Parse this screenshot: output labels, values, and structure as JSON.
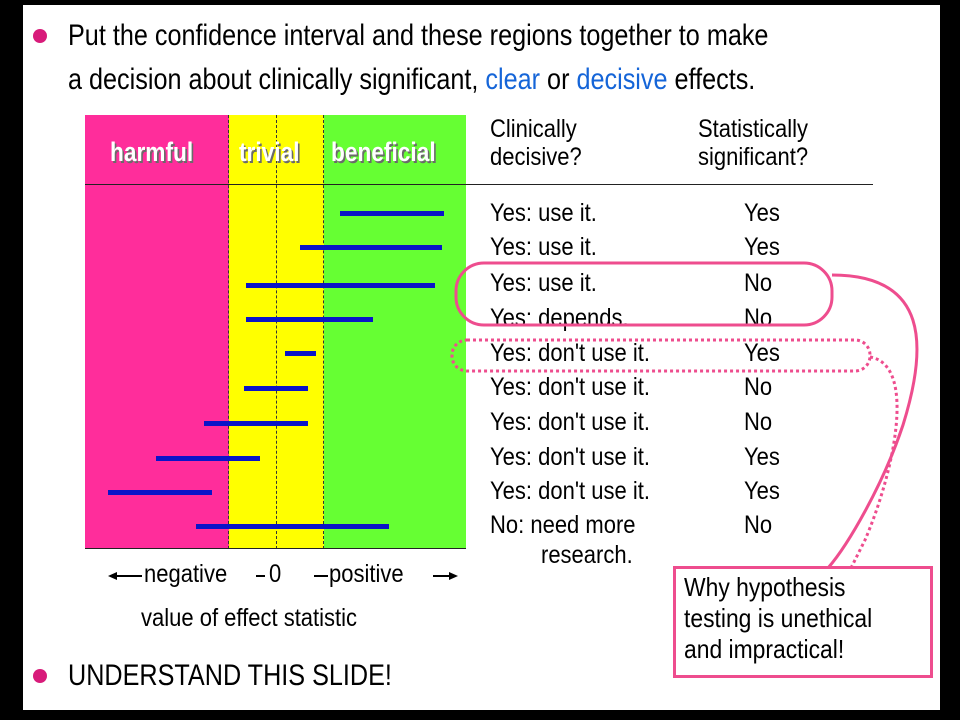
{
  "bullets": {
    "top_line1": "Put the confidence interval and these regions together to make",
    "top_line2_a": "a decision about clinically significant, ",
    "top_line2_clear": "clear",
    "top_line2_or": " or ",
    "top_line2_decisive": "decisive",
    "top_line2_end": " effects.",
    "bottom": "UNDERSTAND THIS SLIDE!"
  },
  "regions": {
    "harmful": "harmful",
    "trivial": "trivial",
    "beneficial": "beneficial"
  },
  "colors": {
    "harmful": "#ff2d9b",
    "trivial": "#ffff00",
    "beneficial": "#66ff33",
    "interval": "#0a14c8",
    "highlight": "#ee4d8e",
    "emphasis_blue": "#1565d8"
  },
  "columns": {
    "clinically_line1": "Clinically",
    "clinically_line2": "decisive?",
    "statistically_line1": "Statistically",
    "statistically_line2": "significant?"
  },
  "rows": [
    {
      "decision": "Yes: use it.",
      "significant": "Yes"
    },
    {
      "decision": "Yes: use it.",
      "significant": "Yes"
    },
    {
      "decision": "Yes: use it.",
      "significant": "No"
    },
    {
      "decision": "Yes: depends.",
      "significant": "No"
    },
    {
      "decision": "Yes: don't use it.",
      "significant": "Yes"
    },
    {
      "decision": "Yes: don't use it.",
      "significant": "No"
    },
    {
      "decision": "Yes: don't use it.",
      "significant": "No"
    },
    {
      "decision": "Yes: don't use it.",
      "significant": "Yes"
    },
    {
      "decision": "Yes: don't use it.",
      "significant": "Yes"
    },
    {
      "decision": "No: need more",
      "decision_line2": "research.",
      "significant": "No"
    }
  ],
  "axis": {
    "negative": "negative",
    "zero": "0",
    "positive": "positive",
    "title": "value of effect statistic"
  },
  "note": {
    "line1": "Why hypothesis",
    "line2": "testing is unethical",
    "line3": "and impractical!"
  }
}
